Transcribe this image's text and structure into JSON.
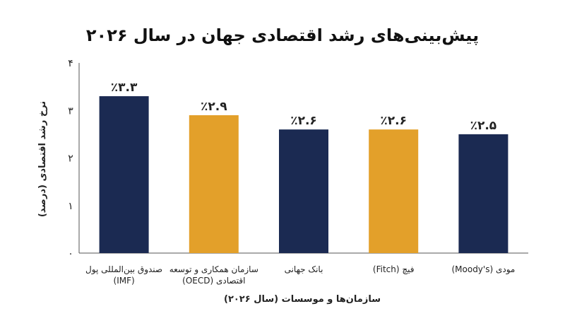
{
  "chart_data": {
    "type": "bar",
    "title": "پیش‌بینی‌های رشد اقتصادی جهان در سال ۲۰۲۶",
    "xlabel": "سازمان‌ها و موسسات (سال ۲۰۲۶)",
    "ylabel": "نرخ رشد اقتصادی (درصد)",
    "ylim": [
      0,
      4
    ],
    "yticks": [
      {
        "value": 0,
        "label": "۰"
      },
      {
        "value": 1,
        "label": "۱"
      },
      {
        "value": 2,
        "label": "۲"
      },
      {
        "value": 3,
        "label": "۳"
      },
      {
        "value": 4,
        "label": "۴"
      }
    ],
    "grid": false,
    "categories": [
      [
        "صندوق بین‌المللی پول",
        "(IMF)"
      ],
      [
        "سازمان همکاری و توسعه",
        "اقتصادی (OECD)"
      ],
      [
        "بانک جهانی"
      ],
      [
        "فیچ (Fitch)"
      ],
      [
        "مودی (Moody's)"
      ]
    ],
    "values": [
      3.3,
      2.9,
      2.6,
      2.6,
      2.5
    ],
    "value_labels": [
      "٪۳.۳",
      "٪۲.۹",
      "٪۲.۶",
      "٪۲.۶",
      "٪۲.۵"
    ],
    "colors": [
      "#1b2a52",
      "#e3a02a",
      "#1b2a52",
      "#e3a02a",
      "#1b2a52"
    ]
  }
}
